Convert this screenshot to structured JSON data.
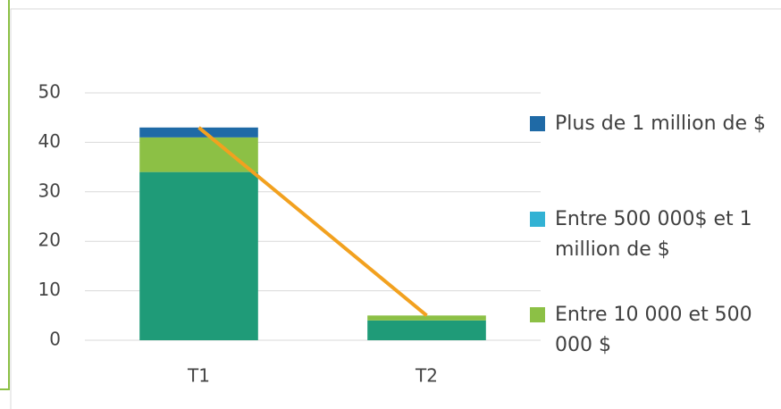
{
  "chart_data": {
    "type": "bar",
    "stacked": true,
    "categories": [
      "T1",
      "T2"
    ],
    "series": [
      {
        "color": "#1f9b78",
        "values": [
          34,
          4
        ]
      },
      {
        "name": "Entre 10 000 et 500 000 $",
        "color": "#8cc045",
        "values": [
          7,
          1
        ]
      },
      {
        "name": "Entre 500 000$ et 1 million de $",
        "color": "#32b2d4",
        "values": [
          0,
          0
        ]
      },
      {
        "name": "Plus de 1 million de $",
        "color": "#1f6aa6",
        "values": [
          2,
          0
        ]
      },
      {
        "type": "line",
        "color": "#f2a11f",
        "values": [
          43,
          5
        ]
      }
    ],
    "ylim": [
      0,
      50
    ],
    "yticks": [
      0,
      10,
      20,
      30,
      40,
      50
    ],
    "grid": true,
    "legend": "right"
  }
}
